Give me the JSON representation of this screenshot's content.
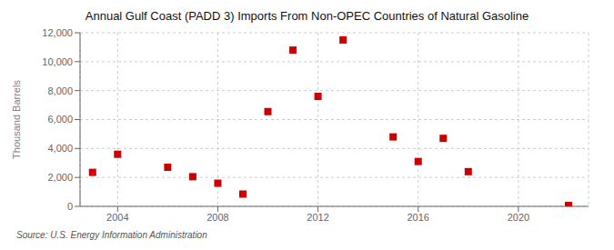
{
  "chart_data": {
    "type": "scatter",
    "title": "Annual Gulf Coast (PADD 3) Imports From Non-OPEC Countries of Natural Gasoline",
    "ylabel": "Thousand Barrels",
    "source": "Source: U.S. Energy Information Administration",
    "x": [
      2003,
      2004,
      2006,
      2007,
      2008,
      2009,
      2010,
      2011,
      2012,
      2013,
      2015,
      2016,
      2017,
      2018,
      2022
    ],
    "values": [
      2350,
      3600,
      2700,
      2050,
      1600,
      850,
      6550,
      10800,
      7600,
      11500,
      4800,
      3100,
      4700,
      2400,
      60
    ],
    "color": "#cc0000",
    "marker": "square",
    "xlim": [
      2002.5,
      2022.8
    ],
    "xticks": [
      2004,
      2008,
      2012,
      2016,
      2020
    ],
    "ylim": [
      0,
      12000
    ],
    "yticks": [
      0,
      {
        "value": 2000,
        "label": "2,000"
      },
      {
        "value": 4000,
        "label": "4,000"
      },
      {
        "value": 6000,
        "label": "6,000"
      },
      {
        "value": 8000,
        "label": "8,000"
      },
      {
        "value": 10000,
        "label": "10,000"
      },
      {
        "value": 12000,
        "label": "12,000"
      }
    ],
    "grid": true
  }
}
